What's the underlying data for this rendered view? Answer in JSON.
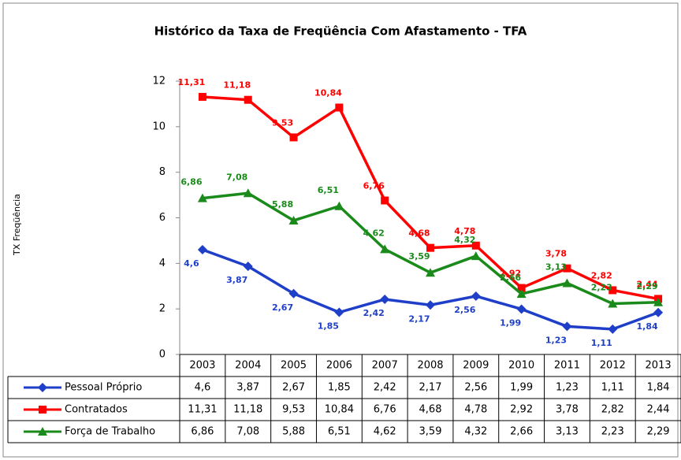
{
  "chart_data": {
    "type": "line",
    "title": "Histórico da Taxa de Freqüência Com Afastamento - TFA",
    "y_label": "TX Freqüência",
    "categories": [
      "2003",
      "2004",
      "2005",
      "2006",
      "2007",
      "2008",
      "2009",
      "2010",
      "2011",
      "2012",
      "2013"
    ],
    "ylim": [
      0,
      12
    ],
    "yticks": [
      0,
      2,
      4,
      6,
      8,
      10,
      12
    ],
    "grid": false,
    "series": [
      {
        "name": "Pessoal Próprio",
        "color": "#1f3fc8",
        "marker": "diamond",
        "values": [
          4.6,
          3.87,
          2.67,
          1.85,
          2.42,
          2.17,
          2.56,
          1.99,
          1.23,
          1.11,
          1.84
        ],
        "value_labels": [
          "4,6",
          "3,87",
          "2,67",
          "1,85",
          "2,42",
          "2,17",
          "2,56",
          "1,99",
          "1,23",
          "1,11",
          "1,84"
        ]
      },
      {
        "name": "Contratados",
        "color": "#ff0000",
        "marker": "square",
        "values": [
          11.31,
          11.18,
          9.53,
          10.84,
          6.76,
          4.68,
          4.78,
          2.92,
          3.78,
          2.82,
          2.44
        ],
        "value_labels": [
          "11,31",
          "11,18",
          "9,53",
          "10,84",
          "6,76",
          "4,68",
          "4,78",
          "2,92",
          "3,78",
          "2,82",
          "2,44"
        ]
      },
      {
        "name": "Força de Trabalho",
        "color": "#1a8a1a",
        "marker": "triangle",
        "values": [
          6.86,
          7.08,
          5.88,
          6.51,
          4.62,
          3.59,
          4.32,
          2.66,
          3.13,
          2.23,
          2.29
        ],
        "value_labels": [
          "6,86",
          "7,08",
          "5,88",
          "6,51",
          "4,62",
          "3,59",
          "4,32",
          "2,66",
          "3,13",
          "2,23",
          "2,29"
        ]
      }
    ]
  }
}
